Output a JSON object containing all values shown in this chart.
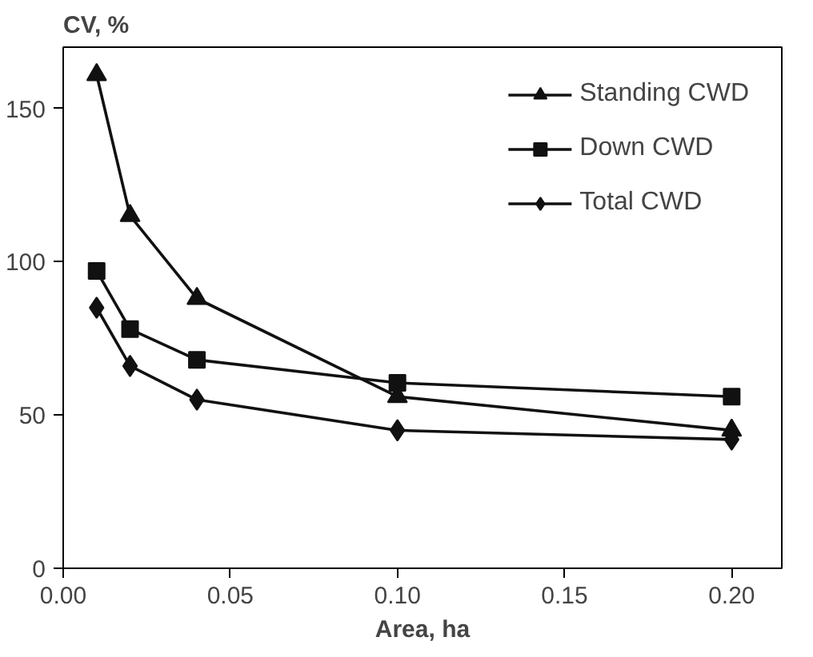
{
  "chart_data": {
    "type": "line",
    "xlabel": "Area, ha",
    "ylabel": "CV, %",
    "x": [
      0.01,
      0.02,
      0.04,
      0.1,
      0.2
    ],
    "xlim": [
      0,
      0.215
    ],
    "ylim": [
      0,
      170
    ],
    "xticks": [
      {
        "value": 0,
        "label": "0.00"
      },
      0.05,
      {
        "value": 0.1,
        "label": "0.10"
      },
      0.15,
      {
        "value": 0.2,
        "label": "0.20"
      }
    ],
    "yticks": [
      0,
      50,
      100,
      150
    ],
    "grid": false,
    "legend": "top right",
    "line_style": "solid",
    "series": [
      {
        "name": "Standing CWD",
        "color": "#111111",
        "marker": "triangle",
        "values": [
          161,
          115,
          88,
          56,
          45
        ]
      },
      {
        "name": "Down CWD",
        "color": "#111111",
        "marker": "square",
        "values": [
          97,
          78,
          68,
          60.5,
          56
        ]
      },
      {
        "name": "Total CWD",
        "color": "#111111",
        "marker": "diamond",
        "values": [
          85,
          66,
          55,
          45,
          42
        ]
      }
    ]
  }
}
